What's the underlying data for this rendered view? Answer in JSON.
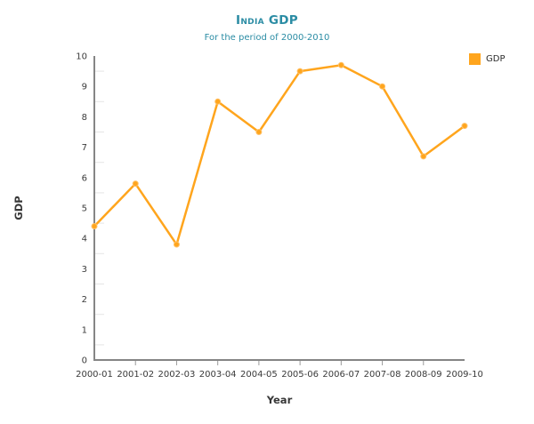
{
  "page": {
    "background": "#FFFFFF"
  },
  "chart_data": {
    "type": "line",
    "title": "India GDP",
    "subtitle": "For the period of 2000-2010",
    "xlabel": "Year",
    "ylabel": "GDP",
    "categories": [
      "2000-01",
      "2001-02",
      "2002-03",
      "2003-04",
      "2004-05",
      "2005-06",
      "2006-07",
      "2007-08",
      "2008-09",
      "2009-10"
    ],
    "series": [
      {
        "name": "GDP",
        "color": "#FFA51D",
        "values": [
          4.4,
          5.8,
          3.8,
          8.5,
          7.5,
          9.5,
          9.7,
          9.0,
          6.7,
          7.7
        ]
      }
    ],
    "ylim": [
      0,
      10
    ],
    "y_tick_step": 1,
    "y_minor_tick_step": 0.5,
    "y_tick_labels": [
      "0",
      "1",
      "2",
      "3",
      "4",
      "5",
      "6",
      "7",
      "8",
      "9",
      "10"
    ],
    "grid": false,
    "legend_position": "top-right",
    "legend": [
      {
        "label": "GDP",
        "color": "#FFA51D"
      }
    ],
    "colors": {
      "title": "#2B8CA4",
      "subtitle": "#2B8CA4",
      "axis_line": "#858585",
      "tick_label": "#3A3A3A",
      "minor_tick": "#E4E4E4",
      "x_tick": "#9A9A9A",
      "marker_stroke": "#FFC168"
    }
  }
}
